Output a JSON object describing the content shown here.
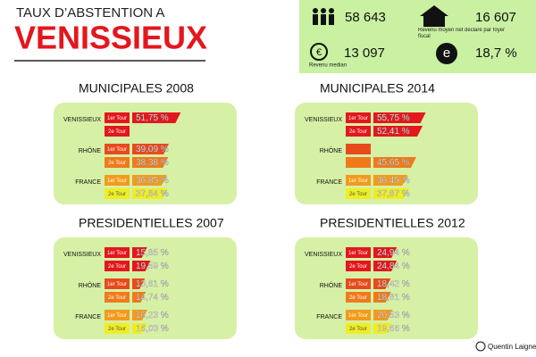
{
  "header": {
    "title": "TAUX D’ABSTENTION A",
    "city": "VENISSIEUX"
  },
  "stats": [
    {
      "value": "58 643"
    },
    {
      "value": "16 607",
      "label": "Revenu moyen net déclaré par foyer fiscal"
    },
    {
      "value": "13 097",
      "label": "Revenu median"
    },
    {
      "value": "18,7 %"
    }
  ],
  "panels": [
    {
      "title": "MUNICIPALES 2008",
      "regions": [
        {
          "name": "VENISSIEUX",
          "tours": [
            {
              "label": "1er Tour",
              "value": 51.75,
              "value_label": "51,75 %"
            },
            {
              "label": "2e Tour",
              "value": null,
              "value_label": null
            }
          ]
        },
        {
          "name": "RHÔNE",
          "tours": [
            {
              "label": "1er Tour",
              "value": 39.09,
              "value_label": "39,09 %"
            },
            {
              "label": "2e Tour",
              "value": 38.38,
              "value_label": "38,38 %"
            }
          ]
        },
        {
          "name": "FRANCE",
          "tours": [
            {
              "label": "1er Tour",
              "value": 36.85,
              "value_label": "36,85 %"
            },
            {
              "label": "2e Tour",
              "value": 37.84,
              "value_label": "37,84 %"
            }
          ]
        }
      ]
    },
    {
      "title": "MUNICIPALES 2014",
      "regions": [
        {
          "name": "VENISSIEUX",
          "tours": [
            {
              "label": "1er Tour",
              "value": 55.75,
              "value_label": "55,75 %"
            },
            {
              "label": "2e Tour",
              "value": 52.41,
              "value_label": "52,41 %"
            }
          ]
        },
        {
          "name": "RHÔNE",
          "tours": [
            {
              "label": null,
              "value": null,
              "value_label": null
            },
            {
              "label": null,
              "value": 45.65,
              "value_label": "45,65 %"
            }
          ]
        },
        {
          "name": "FRANCE",
          "tours": [
            {
              "label": "1er Tour",
              "value": 36.45,
              "value_label": "36,45 %"
            },
            {
              "label": "2e Tour",
              "value": 37.87,
              "value_label": "37,87 %"
            }
          ]
        }
      ]
    },
    {
      "title": "PRESIDENTIELLES 2007",
      "regions": [
        {
          "name": "VENISSIEUX",
          "tours": [
            {
              "label": "1er Tour",
              "value": 15.85,
              "value_label": "15,85 %"
            },
            {
              "label": "2e Tour",
              "value": 19.59,
              "value_label": "19,59 %"
            }
          ]
        },
        {
          "name": "RHÔNE",
          "tours": [
            {
              "label": "1er Tour",
              "value": 13.61,
              "value_label": "13,61 %"
            },
            {
              "label": "2e Tour",
              "value": 14.74,
              "value_label": "14,74 %"
            }
          ]
        },
        {
          "name": "FRANCE",
          "tours": [
            {
              "label": "1er Tour",
              "value": 16.23,
              "value_label": "16,23 %"
            },
            {
              "label": "2e Tour",
              "value": 16.03,
              "value_label": "16,03 %"
            }
          ]
        }
      ]
    },
    {
      "title": "PRESIDENTIELLES 2012",
      "regions": [
        {
          "name": "VENISSIEUX",
          "tours": [
            {
              "label": "1er Tour",
              "value": 24.94,
              "value_label": "24,94 %"
            },
            {
              "label": "2e Tour",
              "value": 24.84,
              "value_label": "24,84 %"
            }
          ]
        },
        {
          "name": "RHÔNE",
          "tours": [
            {
              "label": "1er Tour",
              "value": 18.42,
              "value_label": "18,42 %"
            },
            {
              "label": "2e Tour",
              "value": 18.81,
              "value_label": "18,81 %"
            }
          ]
        },
        {
          "name": "FRANCE",
          "tours": [
            {
              "label": "1er Tour",
              "value": 20.53,
              "value_label": "20,53 %"
            },
            {
              "label": "2e Tour",
              "value": 19.66,
              "value_label": "19,66 %"
            }
          ]
        }
      ]
    }
  ],
  "colors": [
    [
      "#e3171d",
      "#e3171d"
    ],
    [
      "#e84a1c",
      "#f07a1a"
    ],
    [
      "#f59a1c",
      "#eeee22"
    ]
  ],
  "credit": "Quentin Laignel"
}
